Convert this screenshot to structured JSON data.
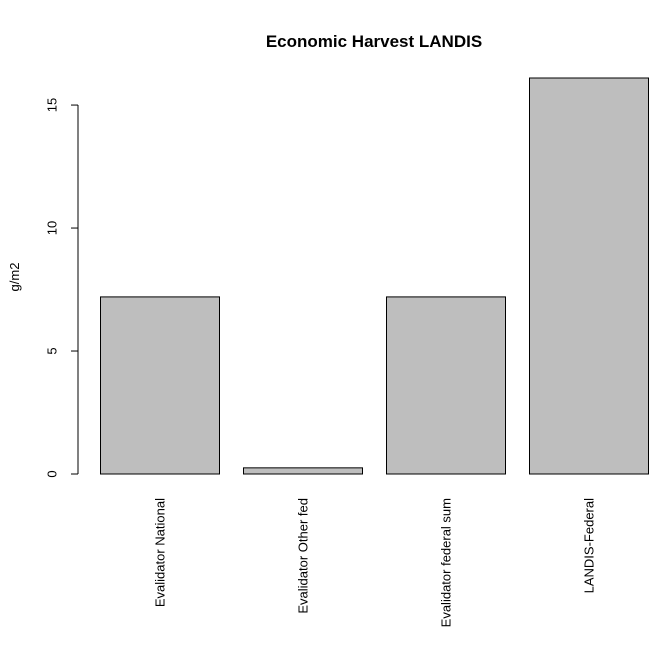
{
  "chart_data": {
    "type": "bar",
    "title": "Economic Harvest LANDIS",
    "xlabel": "",
    "ylabel": "g/m2",
    "categories": [
      "Evalidator National",
      "Evalidator Other fed",
      "Evalidator federal sum",
      "LANDIS-Federal"
    ],
    "values": [
      7.2,
      0.25,
      7.2,
      16.1
    ],
    "yticks": [
      0,
      5,
      10,
      15
    ],
    "ylim": [
      0,
      16.1
    ],
    "bar_color": "#bebebe",
    "grid": false,
    "legend": "none"
  }
}
